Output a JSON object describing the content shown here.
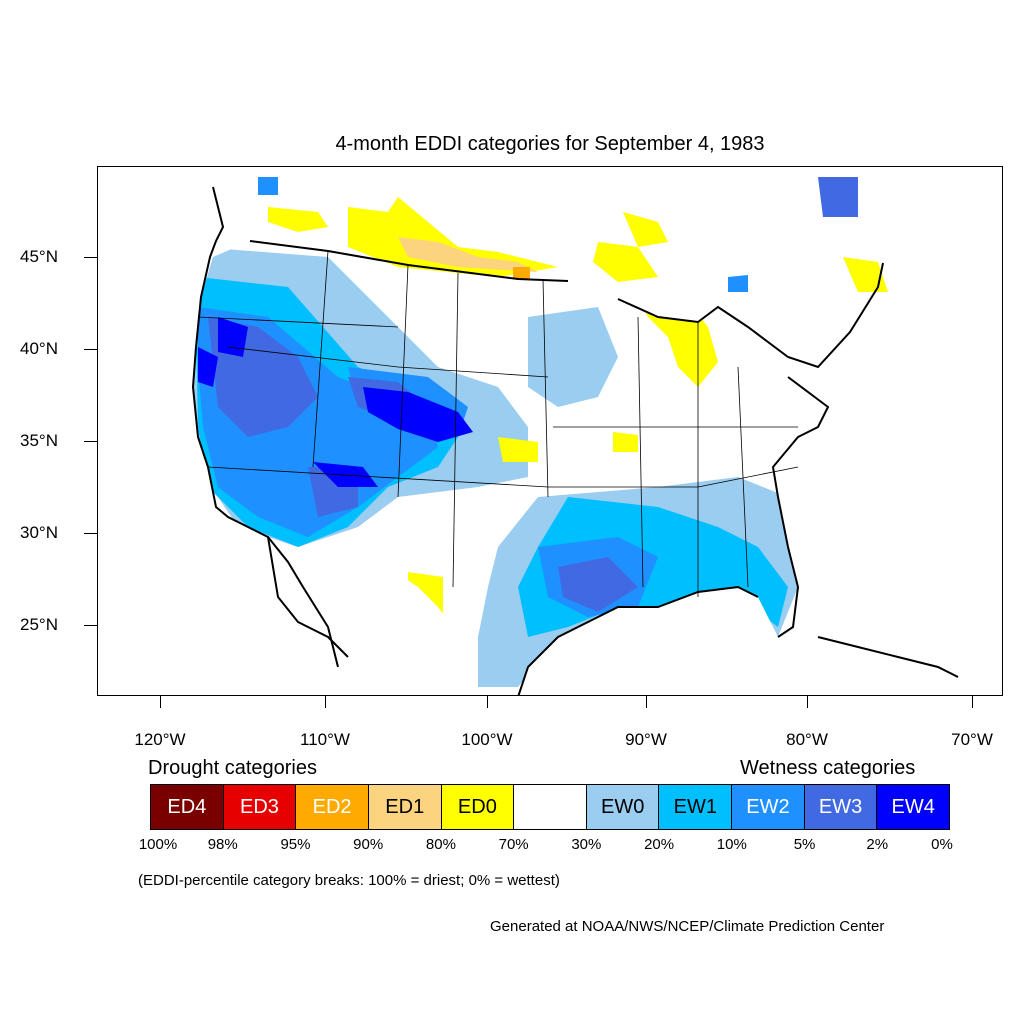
{
  "title": "4-month EDDI categories for September 4, 1983",
  "map": {
    "lat_labels": [
      "45°N",
      "40°N",
      "35°N",
      "30°N",
      "25°N"
    ],
    "lon_labels": [
      "120°W",
      "110°W",
      "100°W",
      "90°W",
      "80°W",
      "70°W"
    ],
    "region": "Contiguous United States with surrounding Canada, Mexico and Caribbean"
  },
  "legend": {
    "drought_heading": "Drought categories",
    "wetness_heading": "Wetness categories",
    "categories": [
      {
        "label": "ED4",
        "color": "#7a0000",
        "text_color": "#ffffff"
      },
      {
        "label": "ED3",
        "color": "#e60000",
        "text_color": "#ffffff"
      },
      {
        "label": "ED2",
        "color": "#ffaa00",
        "text_color": "#ffffff"
      },
      {
        "label": "ED1",
        "color": "#fcd37f",
        "text_color": "#000000"
      },
      {
        "label": "ED0",
        "color": "#ffff00",
        "text_color": "#000000"
      },
      {
        "label": "",
        "color": "#ffffff",
        "text_color": "#000000"
      },
      {
        "label": "EW0",
        "color": "#9bcdf0",
        "text_color": "#000000"
      },
      {
        "label": "EW1",
        "color": "#00bfff",
        "text_color": "#000000"
      },
      {
        "label": "EW2",
        "color": "#1e90ff",
        "text_color": "#ffffff"
      },
      {
        "label": "EW3",
        "color": "#4169e1",
        "text_color": "#ffffff"
      },
      {
        "label": "EW4",
        "color": "#0000ff",
        "text_color": "#ffffff"
      }
    ],
    "percentiles": [
      "100%",
      "98%",
      "95%",
      "90%",
      "80%",
      "70%",
      "30%",
      "20%",
      "10%",
      "5%",
      "2%",
      "0%"
    ]
  },
  "note": "(EDDI-percentile category breaks: 100% = driest; 0% = wettest)",
  "credit": "Generated at NOAA/NWS/NCEP/Climate Prediction Center"
}
